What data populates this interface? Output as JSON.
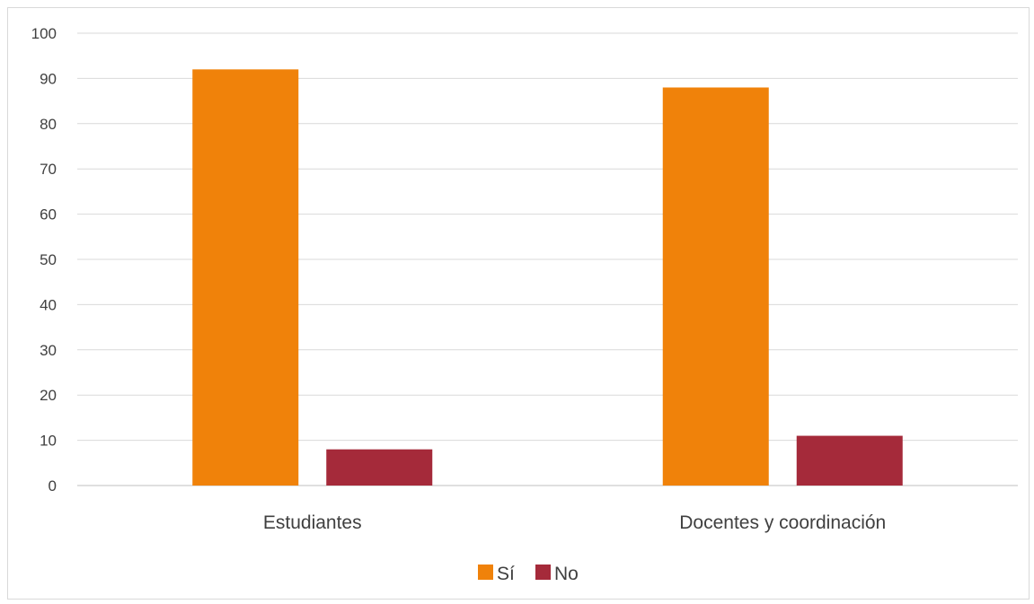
{
  "chart_data": {
    "type": "bar",
    "title": "",
    "xlabel": "",
    "ylabel": "",
    "categories": [
      "Estudiantes",
      "Docentes y coordinación"
    ],
    "series": [
      {
        "name": "Sí",
        "color": "#F0820A",
        "values": [
          92,
          88
        ]
      },
      {
        "name": "No",
        "color": "#A52A3A",
        "values": [
          8,
          11
        ]
      }
    ],
    "ylim": [
      0,
      100
    ],
    "yticks": [
      "0",
      "10",
      "20",
      "30",
      "40",
      "50",
      "60",
      "70",
      "80",
      "90",
      "100"
    ],
    "grid": true,
    "legend_position": "bottom"
  }
}
